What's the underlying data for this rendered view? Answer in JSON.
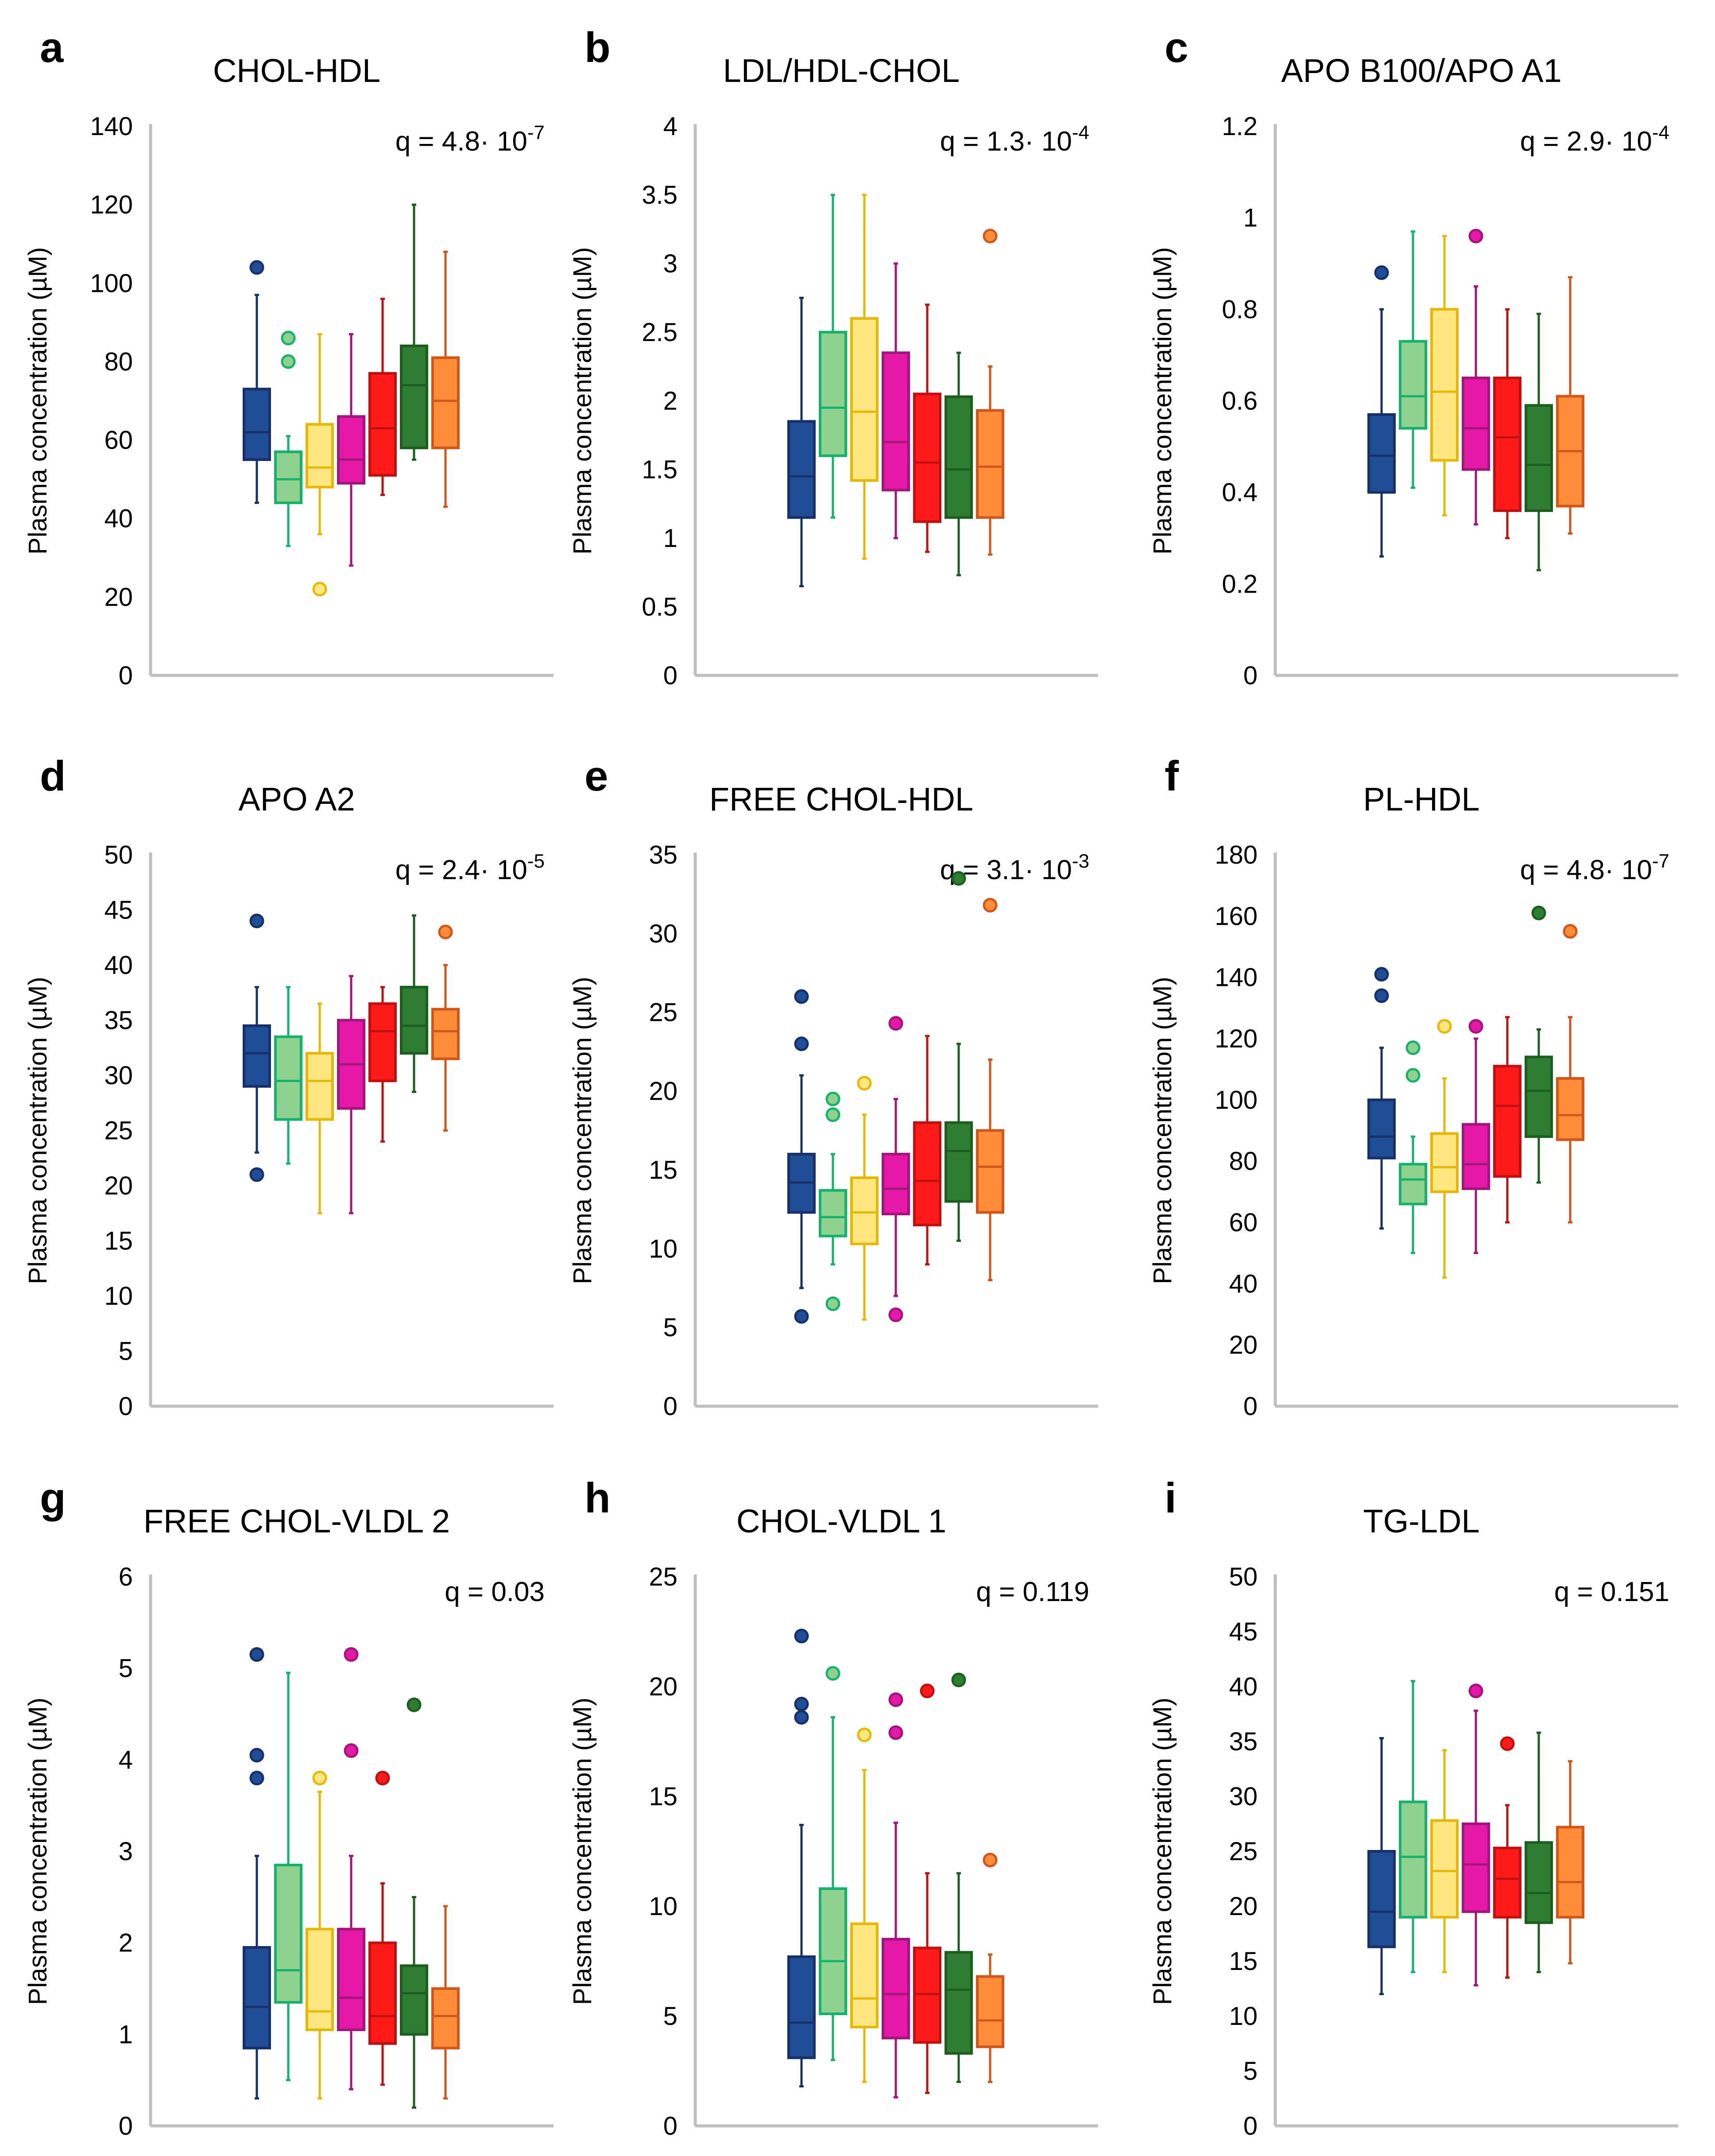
{
  "figure": {
    "y_axis_label": "Plasma concentration (µM)"
  },
  "series_colors": [
    {
      "name": "group-1",
      "fill": "#1f4e96",
      "stroke": "#17306a"
    },
    {
      "name": "group-2",
      "fill": "#8fd18f",
      "stroke": "#15b26b"
    },
    {
      "name": "group-3",
      "fill": "#ffe680",
      "stroke": "#e6b800"
    },
    {
      "name": "group-4",
      "fill": "#e618a8",
      "stroke": "#a0167a"
    },
    {
      "name": "group-5",
      "fill": "#ff1a1a",
      "stroke": "#c01010"
    },
    {
      "name": "group-6",
      "fill": "#2e7d32",
      "stroke": "#1b5e20"
    },
    {
      "name": "group-7",
      "fill": "#ff8c38",
      "stroke": "#d2551a"
    }
  ],
  "chart_data": [
    {
      "panel": "a",
      "type": "boxplot",
      "title": "CHOL-HDL",
      "q": "q = 4.8· 10",
      "q_exp": "-7",
      "ylim": [
        0,
        140
      ],
      "yticks": [
        "0",
        "20",
        "40",
        "60",
        "80",
        "100",
        "120",
        "140"
      ],
      "boxes": [
        {
          "min": 44,
          "q1": 55,
          "median": 62,
          "q3": 73,
          "max": 97,
          "outliers": [
            104
          ]
        },
        {
          "min": 33,
          "q1": 44,
          "median": 50,
          "q3": 57,
          "max": 61,
          "outliers": [
            86,
            80
          ]
        },
        {
          "min": 36,
          "q1": 48,
          "median": 53,
          "q3": 64,
          "max": 87,
          "outliers": [
            22
          ]
        },
        {
          "min": 28,
          "q1": 49,
          "median": 55,
          "q3": 66,
          "max": 87,
          "outliers": []
        },
        {
          "min": 46,
          "q1": 51,
          "median": 63,
          "q3": 77,
          "max": 96,
          "outliers": []
        },
        {
          "min": 55,
          "q1": 58,
          "median": 74,
          "q3": 84,
          "max": 120,
          "outliers": []
        },
        {
          "min": 43,
          "q1": 58,
          "median": 70,
          "q3": 81,
          "max": 108,
          "outliers": []
        }
      ]
    },
    {
      "panel": "b",
      "type": "boxplot",
      "title": "LDL/HDL-CHOL",
      "q": "q = 1.3· 10",
      "q_exp": "-4",
      "ylim": [
        0,
        4
      ],
      "yticks": [
        "0",
        "0.5",
        "1",
        "1.5",
        "2",
        "2.5",
        "3",
        "3.5",
        "4"
      ],
      "boxes": [
        {
          "min": 0.65,
          "q1": 1.15,
          "median": 1.45,
          "q3": 1.85,
          "max": 2.75,
          "outliers": []
        },
        {
          "min": 1.15,
          "q1": 1.6,
          "median": 1.95,
          "q3": 2.5,
          "max": 3.5,
          "outliers": []
        },
        {
          "min": 0.85,
          "q1": 1.42,
          "median": 1.92,
          "q3": 2.6,
          "max": 3.5,
          "outliers": []
        },
        {
          "min": 1.0,
          "q1": 1.35,
          "median": 1.7,
          "q3": 2.35,
          "max": 3.0,
          "outliers": []
        },
        {
          "min": 0.9,
          "q1": 1.12,
          "median": 1.55,
          "q3": 2.05,
          "max": 2.7,
          "outliers": []
        },
        {
          "min": 0.73,
          "q1": 1.15,
          "median": 1.5,
          "q3": 2.03,
          "max": 2.35,
          "outliers": []
        },
        {
          "min": 0.88,
          "q1": 1.15,
          "median": 1.52,
          "q3": 1.93,
          "max": 2.25,
          "outliers": [
            3.2
          ]
        }
      ]
    },
    {
      "panel": "c",
      "type": "boxplot",
      "title": "APO B100/APO A1",
      "q": "q = 2.9· 10",
      "q_exp": "-4",
      "ylim": [
        0,
        1.2
      ],
      "yticks": [
        "0",
        "0.2",
        "0.4",
        "0.6",
        "0.8",
        "1",
        "1.2"
      ],
      "boxes": [
        {
          "min": 0.26,
          "q1": 0.4,
          "median": 0.48,
          "q3": 0.57,
          "max": 0.8,
          "outliers": [
            0.88
          ]
        },
        {
          "min": 0.41,
          "q1": 0.54,
          "median": 0.61,
          "q3": 0.73,
          "max": 0.97,
          "outliers": []
        },
        {
          "min": 0.35,
          "q1": 0.47,
          "median": 0.62,
          "q3": 0.8,
          "max": 0.96,
          "outliers": []
        },
        {
          "min": 0.33,
          "q1": 0.45,
          "median": 0.54,
          "q3": 0.65,
          "max": 0.85,
          "outliers": [
            0.96
          ]
        },
        {
          "min": 0.3,
          "q1": 0.36,
          "median": 0.52,
          "q3": 0.65,
          "max": 0.8,
          "outliers": []
        },
        {
          "min": 0.23,
          "q1": 0.36,
          "median": 0.46,
          "q3": 0.59,
          "max": 0.79,
          "outliers": []
        },
        {
          "min": 0.31,
          "q1": 0.37,
          "median": 0.49,
          "q3": 0.61,
          "max": 0.87,
          "outliers": []
        }
      ]
    },
    {
      "panel": "d",
      "type": "boxplot",
      "title": "APO A2",
      "q": "q = 2.4· 10",
      "q_exp": "-5",
      "ylim": [
        0,
        50
      ],
      "yticks": [
        "0",
        "5",
        "10",
        "15",
        "20",
        "25",
        "30",
        "35",
        "40",
        "45",
        "50"
      ],
      "boxes": [
        {
          "min": 23,
          "q1": 29,
          "median": 32,
          "q3": 34.5,
          "max": 38,
          "outliers": [
            44,
            21
          ]
        },
        {
          "min": 22,
          "q1": 26,
          "median": 29.5,
          "q3": 33.5,
          "max": 38,
          "outliers": []
        },
        {
          "min": 17.5,
          "q1": 26,
          "median": 29.5,
          "q3": 32,
          "max": 36.5,
          "outliers": []
        },
        {
          "min": 17.5,
          "q1": 27,
          "median": 31,
          "q3": 35,
          "max": 39,
          "outliers": []
        },
        {
          "min": 24,
          "q1": 29.5,
          "median": 34,
          "q3": 36.5,
          "max": 38,
          "outliers": []
        },
        {
          "min": 28.5,
          "q1": 32,
          "median": 34.5,
          "q3": 38,
          "max": 44.5,
          "outliers": []
        },
        {
          "min": 25,
          "q1": 31.5,
          "median": 34,
          "q3": 36,
          "max": 40,
          "outliers": [
            43
          ]
        }
      ]
    },
    {
      "panel": "e",
      "type": "boxplot",
      "title": "FREE CHOL-HDL",
      "q": "q = 3.1· 10",
      "q_exp": "-3",
      "ylim": [
        0,
        35
      ],
      "yticks": [
        "0",
        "5",
        "10",
        "15",
        "20",
        "25",
        "30",
        "35"
      ],
      "boxes": [
        {
          "min": 7.5,
          "q1": 12.3,
          "median": 14.2,
          "q3": 16,
          "max": 21,
          "outliers": [
            26,
            23,
            5.7
          ]
        },
        {
          "min": 9,
          "q1": 10.8,
          "median": 12,
          "q3": 13.7,
          "max": 16,
          "outliers": [
            19.5,
            18.5,
            6.5
          ]
        },
        {
          "min": 5.5,
          "q1": 10.3,
          "median": 12.3,
          "q3": 14.5,
          "max": 18.5,
          "outliers": [
            20.5
          ]
        },
        {
          "min": 7,
          "q1": 12.2,
          "median": 13.8,
          "q3": 16,
          "max": 19.5,
          "outliers": [
            24.3,
            5.8
          ]
        },
        {
          "min": 9,
          "q1": 11.5,
          "median": 14.3,
          "q3": 18,
          "max": 23.5,
          "outliers": []
        },
        {
          "min": 10.5,
          "q1": 13,
          "median": 16.2,
          "q3": 18,
          "max": 23,
          "outliers": [
            33.5
          ]
        },
        {
          "min": 8,
          "q1": 12.3,
          "median": 15.2,
          "q3": 17.5,
          "max": 22,
          "outliers": [
            31.8
          ]
        }
      ]
    },
    {
      "panel": "f",
      "type": "boxplot",
      "title": "PL-HDL",
      "q": "q = 4.8· 10",
      "q_exp": "-7",
      "ylim": [
        0,
        180
      ],
      "yticks": [
        "0",
        "20",
        "40",
        "60",
        "80",
        "100",
        "120",
        "140",
        "160",
        "180"
      ],
      "boxes": [
        {
          "min": 58,
          "q1": 81,
          "median": 88,
          "q3": 100,
          "max": 117,
          "outliers": [
            141,
            134
          ]
        },
        {
          "min": 50,
          "q1": 66,
          "median": 74,
          "q3": 79,
          "max": 88,
          "outliers": [
            117,
            108
          ]
        },
        {
          "min": 42,
          "q1": 70,
          "median": 78,
          "q3": 89,
          "max": 107,
          "outliers": [
            124
          ]
        },
        {
          "min": 50,
          "q1": 71,
          "median": 79,
          "q3": 92,
          "max": 120,
          "outliers": [
            124
          ]
        },
        {
          "min": 60,
          "q1": 75,
          "median": 98,
          "q3": 111,
          "max": 127,
          "outliers": []
        },
        {
          "min": 73,
          "q1": 88,
          "median": 103,
          "q3": 114,
          "max": 123,
          "outliers": [
            161
          ]
        },
        {
          "min": 60,
          "q1": 87,
          "median": 95,
          "q3": 107,
          "max": 127,
          "outliers": [
            155
          ]
        }
      ]
    },
    {
      "panel": "g",
      "type": "boxplot",
      "title": "FREE CHOL-VLDL 2",
      "q": "q = 0.03",
      "q_exp": "",
      "ylim": [
        0,
        6
      ],
      "yticks": [
        "0",
        "1",
        "2",
        "3",
        "4",
        "5",
        "6"
      ],
      "boxes": [
        {
          "min": 0.3,
          "q1": 0.85,
          "median": 1.3,
          "q3": 1.95,
          "max": 2.95,
          "outliers": [
            5.15,
            4.05,
            3.8
          ]
        },
        {
          "min": 0.5,
          "q1": 1.35,
          "median": 1.7,
          "q3": 2.85,
          "max": 4.95,
          "outliers": []
        },
        {
          "min": 0.3,
          "q1": 1.05,
          "median": 1.25,
          "q3": 2.15,
          "max": 3.65,
          "outliers": [
            3.8
          ]
        },
        {
          "min": 0.4,
          "q1": 1.05,
          "median": 1.4,
          "q3": 2.15,
          "max": 2.95,
          "outliers": [
            5.15,
            4.1
          ]
        },
        {
          "min": 0.45,
          "q1": 0.9,
          "median": 1.2,
          "q3": 2.0,
          "max": 2.65,
          "outliers": [
            3.8
          ]
        },
        {
          "min": 0.2,
          "q1": 1.0,
          "median": 1.45,
          "q3": 1.75,
          "max": 2.5,
          "outliers": [
            4.6
          ]
        },
        {
          "min": 0.3,
          "q1": 0.85,
          "median": 1.2,
          "q3": 1.5,
          "max": 2.4,
          "outliers": []
        }
      ]
    },
    {
      "panel": "h",
      "type": "boxplot",
      "title": "CHOL-VLDL  1",
      "q": "q = 0.119",
      "q_exp": "",
      "ylim": [
        0,
        25
      ],
      "yticks": [
        "0",
        "5",
        "10",
        "15",
        "20",
        "25"
      ],
      "boxes": [
        {
          "min": 1.8,
          "q1": 3.1,
          "median": 4.7,
          "q3": 7.7,
          "max": 13.7,
          "outliers": [
            22.3,
            19.2,
            18.6
          ]
        },
        {
          "min": 3,
          "q1": 5.1,
          "median": 7.5,
          "q3": 10.8,
          "max": 18.6,
          "outliers": [
            20.6
          ]
        },
        {
          "min": 2,
          "q1": 4.5,
          "median": 5.8,
          "q3": 9.2,
          "max": 16.2,
          "outliers": [
            17.8
          ]
        },
        {
          "min": 1.3,
          "q1": 4.0,
          "median": 6.0,
          "q3": 8.5,
          "max": 13.8,
          "outliers": [
            19.4,
            17.9
          ]
        },
        {
          "min": 1.5,
          "q1": 3.8,
          "median": 6.0,
          "q3": 8.1,
          "max": 11.5,
          "outliers": [
            19.8
          ]
        },
        {
          "min": 2,
          "q1": 3.3,
          "median": 6.2,
          "q3": 7.9,
          "max": 11.5,
          "outliers": [
            20.3
          ]
        },
        {
          "min": 2,
          "q1": 3.6,
          "median": 4.8,
          "q3": 6.8,
          "max": 7.8,
          "outliers": [
            12.1
          ]
        }
      ]
    },
    {
      "panel": "i",
      "type": "boxplot",
      "title": "TG-LDL",
      "q": "q = 0.151",
      "q_exp": "",
      "ylim": [
        0,
        50
      ],
      "yticks": [
        "0",
        "5",
        "10",
        "15",
        "20",
        "25",
        "30",
        "35",
        "40",
        "45",
        "50"
      ],
      "boxes": [
        {
          "min": 12,
          "q1": 16.3,
          "median": 19.5,
          "q3": 25,
          "max": 35.3,
          "outliers": []
        },
        {
          "min": 14,
          "q1": 19,
          "median": 24.5,
          "q3": 29.5,
          "max": 40.5,
          "outliers": []
        },
        {
          "min": 14,
          "q1": 19,
          "median": 23.2,
          "q3": 27.8,
          "max": 34.2,
          "outliers": []
        },
        {
          "min": 12.8,
          "q1": 19.5,
          "median": 23.8,
          "q3": 27.5,
          "max": 37.8,
          "outliers": [
            39.6
          ]
        },
        {
          "min": 13.5,
          "q1": 19,
          "median": 22.5,
          "q3": 25.3,
          "max": 29.2,
          "outliers": [
            34.8
          ]
        },
        {
          "min": 14,
          "q1": 18.5,
          "median": 21.2,
          "q3": 25.8,
          "max": 35.8,
          "outliers": []
        },
        {
          "min": 14.8,
          "q1": 19,
          "median": 22.2,
          "q3": 27.2,
          "max": 33.2,
          "outliers": []
        }
      ]
    }
  ]
}
